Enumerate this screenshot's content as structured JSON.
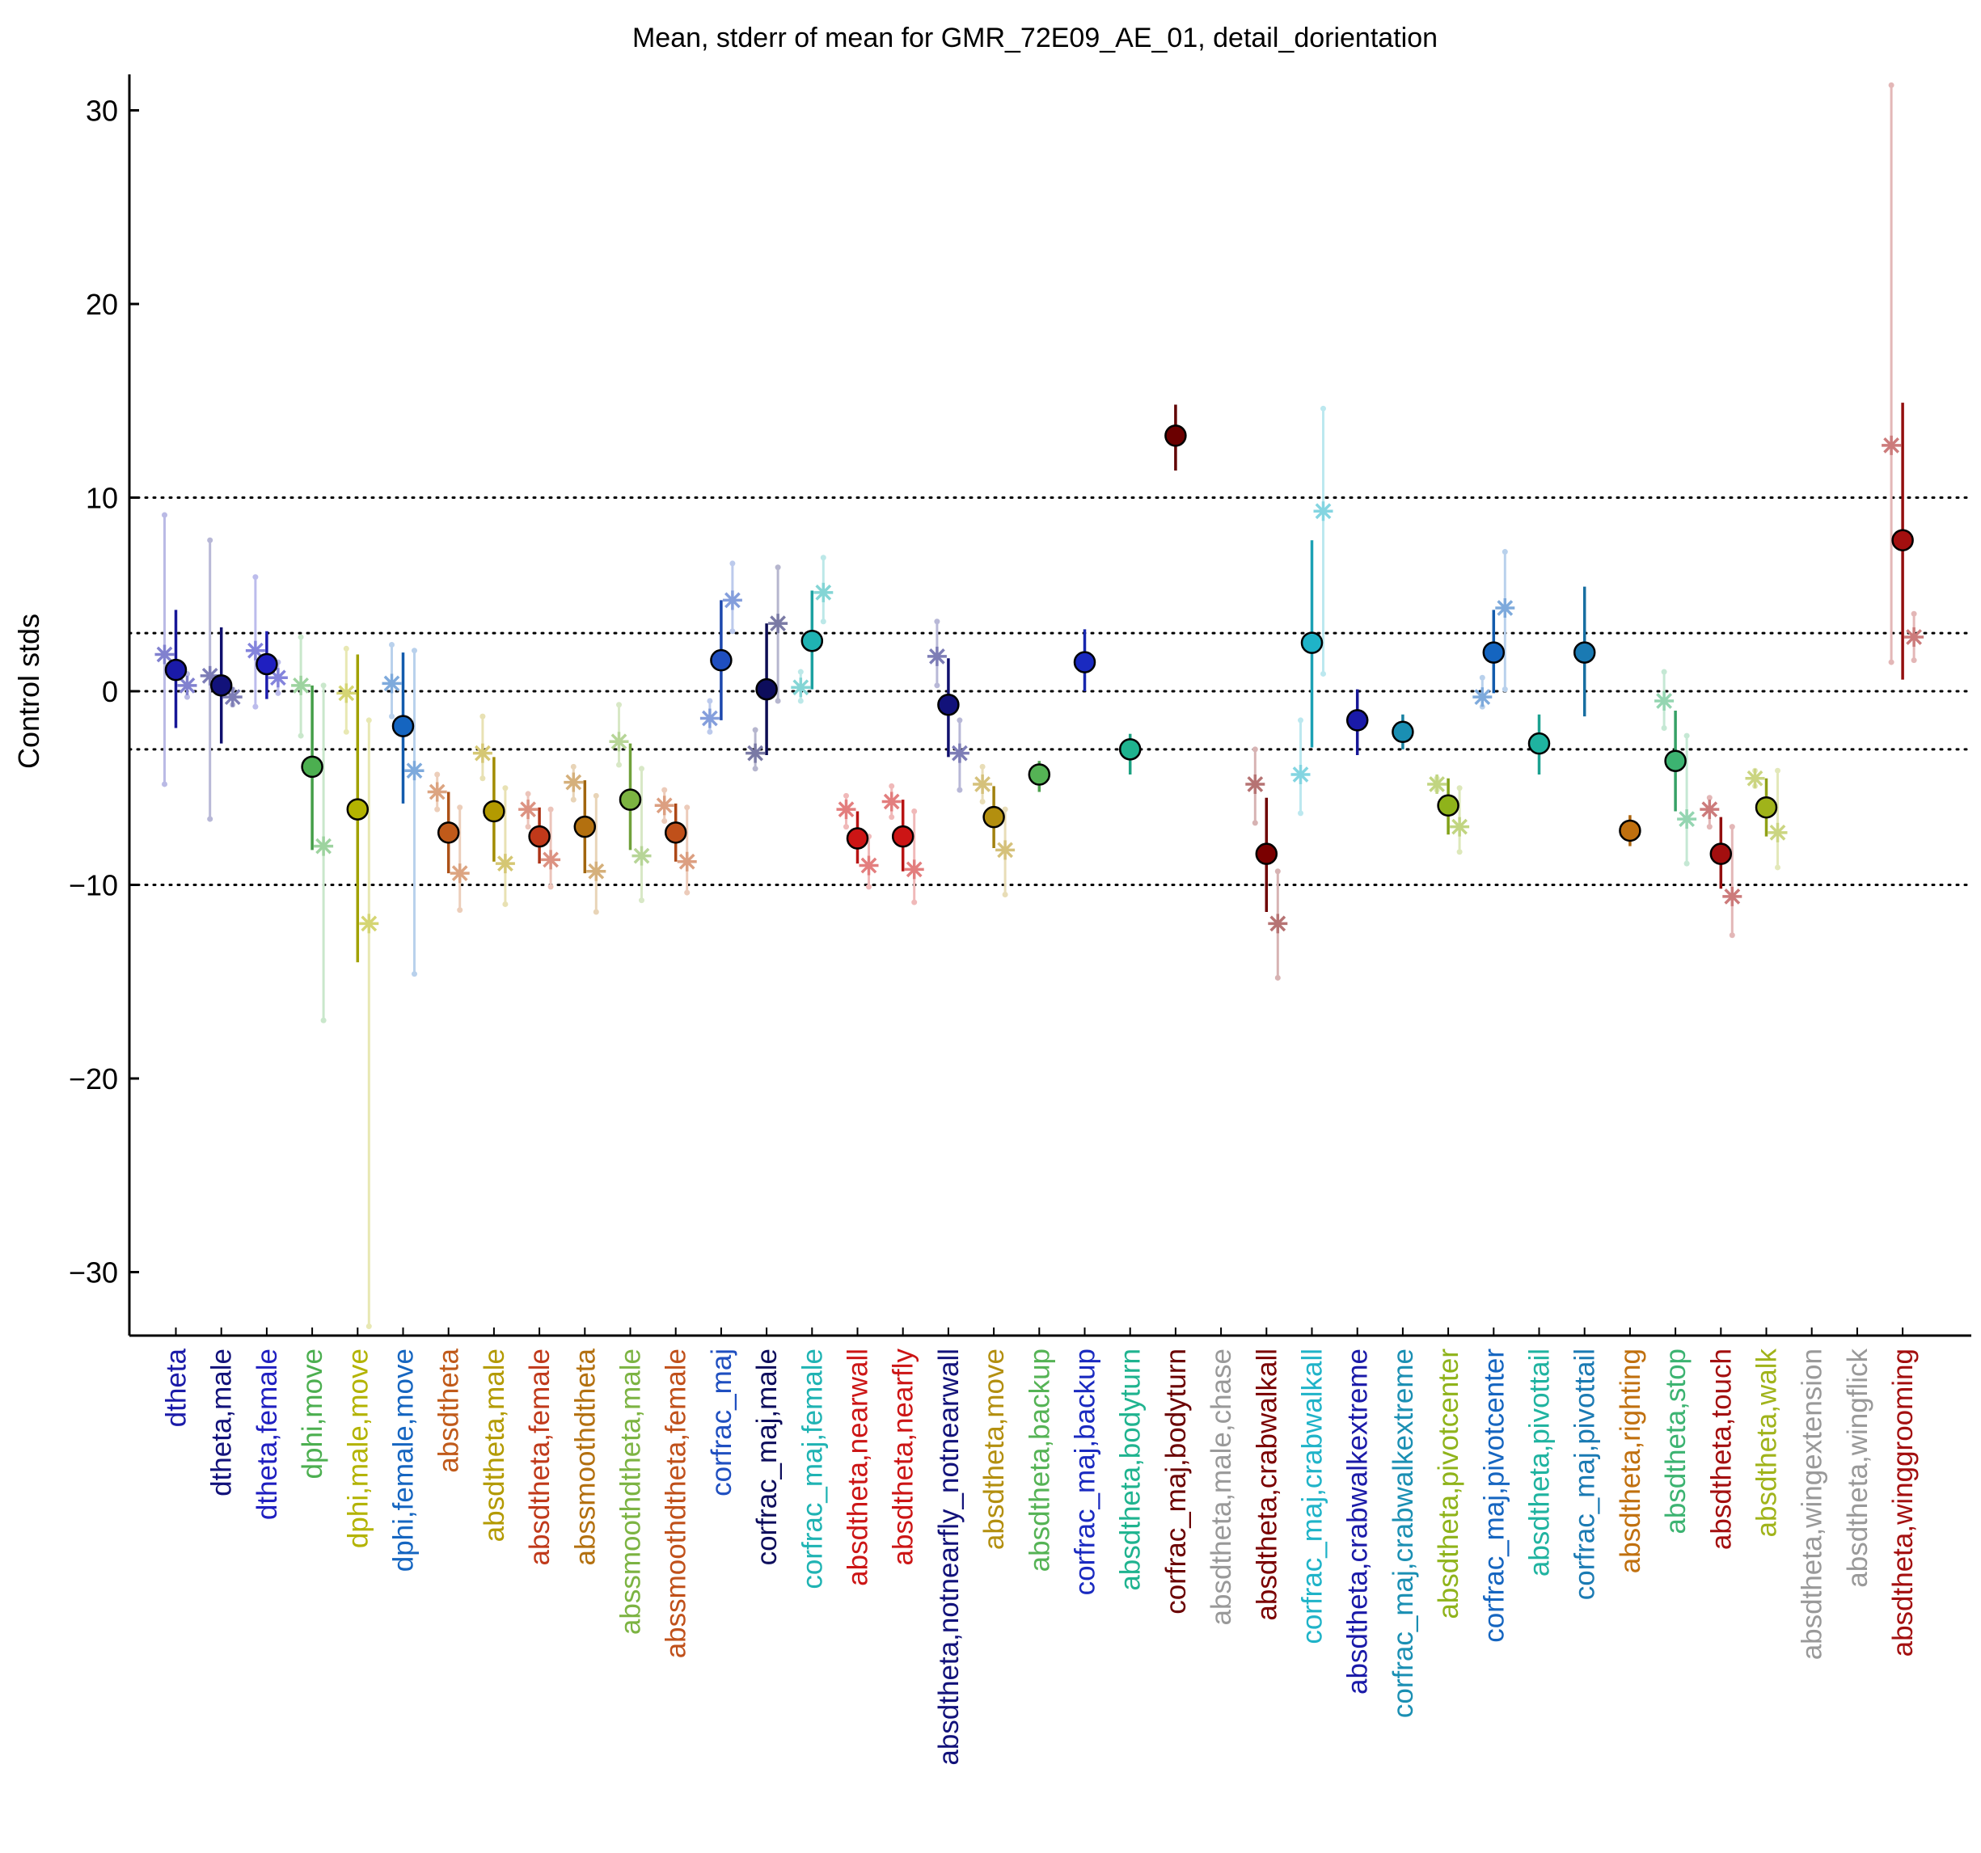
{
  "chart_data": {
    "type": "scatter",
    "title": "Mean, stderr of mean for GMR_72E09_AE_01, detail_dorientation",
    "xlabel": "",
    "ylabel": "Control stds",
    "ylim": [
      -33,
      32
    ],
    "yticks": [
      -30,
      -20,
      -10,
      0,
      10,
      20,
      30
    ],
    "ytick_labels": [
      "−30",
      "−20",
      "−10",
      "0",
      "10",
      "20",
      "30"
    ],
    "reference_lines": [
      -10,
      -3,
      0,
      3,
      10
    ],
    "grid": false,
    "legend": "none",
    "categories": [
      "dtheta",
      "dtheta,male",
      "dtheta,female",
      "dphi,move",
      "dphi,male,move",
      "dphi,female,move",
      "absdtheta",
      "absdtheta,male",
      "absdtheta,female",
      "abssmoothdtheta",
      "abssmoothdtheta,male",
      "abssmoothdtheta,female",
      "corfrac_maj",
      "corfrac_maj,male",
      "corfrac_maj,female",
      "absdtheta,nearwall",
      "absdtheta,nearfly",
      "absdtheta,notnearfly_notnearwall",
      "absdtheta,move",
      "absdtheta,backup",
      "corfrac_maj,backup",
      "absdtheta,bodyturn",
      "corfrac_maj,bodyturn",
      "absdtheta,male,chase",
      "absdtheta,crabwalkall",
      "corfrac_maj,crabwalkall",
      "absdtheta,crabwalkextreme",
      "corfrac_maj,crabwalkextreme",
      "absdtheta,pivotcenter",
      "corfrac_maj,pivotcenter",
      "absdtheta,pivottail",
      "corfrac_maj,pivottail",
      "absdtheta,righting",
      "absdtheta,stop",
      "absdtheta,touch",
      "absdtheta,walk",
      "absdtheta,wingextension",
      "absdtheta,wingflick",
      "absdtheta,winggrooming"
    ],
    "category_colors": [
      "#1a1aa8",
      "#12127a",
      "#1f1fc0",
      "#4caf50",
      "#b3b300",
      "#1565c0",
      "#c05a1a",
      "#b39a00",
      "#c0391a",
      "#b3700f",
      "#7cb342",
      "#c0501a",
      "#1f4fc0",
      "#0d0d5c",
      "#1fb3b3",
      "#cc1515",
      "#cc1515",
      "#12127a",
      "#b38f0f",
      "#55b355",
      "#1a2ac0",
      "#1fb38f",
      "#6b0000",
      "#999999",
      "#7a0000",
      "#1fb3c8",
      "#1a1aa8",
      "#1a8fb3",
      "#8fb31a",
      "#1565c0",
      "#1fb3a0",
      "#1a7ab3",
      "#c0700f",
      "#3cb371",
      "#a30f0f",
      "#a0b31a",
      "#999999",
      "#999999",
      "#a30f0f"
    ],
    "series": [
      {
        "marker": "circle",
        "values": [
          1.1,
          0.3,
          1.4,
          -3.9,
          -6.1,
          -1.8,
          -7.3,
          -6.2,
          -7.5,
          -7.0,
          -5.6,
          -7.3,
          1.6,
          0.1,
          2.6,
          -7.6,
          -7.5,
          -0.7,
          -6.5,
          -4.3,
          1.5,
          -3.0,
          13.2,
          null,
          -8.4,
          2.5,
          -1.5,
          -2.1,
          -5.9,
          2.0,
          -2.7,
          2.0,
          -7.2,
          -3.6,
          -8.4,
          -6.0,
          null,
          null,
          7.8
        ],
        "err_low": [
          -1.9,
          -2.7,
          -0.4,
          -8.2,
          -14.0,
          -5.8,
          -9.4,
          -8.8,
          -8.9,
          -9.4,
          -8.2,
          -8.8,
          -1.5,
          -3.3,
          0.1,
          -8.9,
          -9.3,
          -3.4,
          -8.1,
          -5.2,
          0.0,
          -4.3,
          11.4,
          null,
          -11.4,
          -2.9,
          -3.3,
          -3.0,
          -7.4,
          -0.1,
          -4.3,
          -1.3,
          -8.0,
          -6.2,
          -10.2,
          -7.5,
          null,
          null,
          0.6
        ],
        "err_high": [
          4.2,
          3.3,
          3.1,
          0.3,
          1.9,
          2.0,
          -5.2,
          -3.4,
          -6.0,
          -4.6,
          -2.7,
          -5.8,
          4.7,
          3.5,
          5.2,
          -6.2,
          -5.6,
          1.7,
          -4.9,
          -3.6,
          3.2,
          -2.2,
          14.8,
          null,
          -5.5,
          7.8,
          0.1,
          -1.2,
          -4.5,
          4.2,
          -1.2,
          5.4,
          -6.4,
          -1.0,
          -6.5,
          -4.5,
          null,
          null,
          14.9
        ]
      },
      {
        "marker": "asterisk",
        "offset": "left",
        "values": [
          1.9,
          0.8,
          2.1,
          0.3,
          -0.1,
          0.4,
          -5.2,
          -3.2,
          -6.1,
          -4.7,
          -2.6,
          -5.9,
          -1.4,
          -3.2,
          0.2,
          -6.1,
          -5.7,
          1.8,
          -4.8,
          null,
          null,
          null,
          null,
          null,
          -4.8,
          -4.3,
          null,
          null,
          -4.8,
          -0.3,
          null,
          null,
          null,
          -0.5,
          -6.1,
          -4.5,
          null,
          null,
          12.7
        ],
        "err_low": [
          -4.8,
          -6.6,
          -0.8,
          -2.3,
          -2.1,
          -1.3,
          -6.1,
          -4.5,
          -7.0,
          -5.6,
          -3.8,
          -6.7,
          -2.1,
          -4.0,
          -0.5,
          -7.0,
          -6.5,
          0.3,
          -5.7,
          null,
          null,
          null,
          null,
          null,
          -6.8,
          -6.3,
          null,
          null,
          -5.1,
          -0.8,
          null,
          null,
          null,
          -1.9,
          -7.0,
          -4.9,
          null,
          null,
          1.5
        ],
        "err_high": [
          9.1,
          7.8,
          5.9,
          2.8,
          2.2,
          2.4,
          -4.3,
          -1.3,
          -5.3,
          -3.9,
          -0.7,
          -5.1,
          -0.5,
          -2.0,
          1.0,
          -5.4,
          -4.9,
          3.6,
          -3.9,
          null,
          null,
          null,
          null,
          null,
          -3.0,
          -1.5,
          null,
          null,
          -4.5,
          0.7,
          null,
          null,
          null,
          1.0,
          -5.5,
          -4.1,
          null,
          null,
          31.3
        ]
      },
      {
        "marker": "asterisk",
        "offset": "right",
        "values": [
          0.3,
          -0.3,
          0.7,
          -8.0,
          -12.0,
          -4.1,
          -9.4,
          -8.9,
          -8.7,
          -9.3,
          -8.5,
          -8.8,
          4.7,
          3.5,
          5.1,
          -9.0,
          -9.2,
          -3.2,
          -8.2,
          null,
          null,
          null,
          null,
          null,
          -12.0,
          9.3,
          null,
          null,
          -7.0,
          4.3,
          null,
          null,
          null,
          -6.6,
          -10.6,
          -7.3,
          null,
          null,
          2.8
        ],
        "err_low": [
          -0.3,
          -0.7,
          -0.1,
          -17.0,
          -32.8,
          -14.6,
          -11.3,
          -11.0,
          -10.1,
          -11.4,
          -10.8,
          -10.4,
          3.1,
          -0.5,
          3.6,
          -10.1,
          -10.9,
          -5.1,
          -10.5,
          null,
          null,
          null,
          null,
          null,
          -14.8,
          0.9,
          null,
          null,
          -8.3,
          0.1,
          null,
          null,
          null,
          -8.9,
          -12.6,
          -9.1,
          null,
          null,
          1.6
        ],
        "err_high": [
          0.9,
          0.1,
          1.5,
          0.3,
          -1.5,
          2.1,
          -6.0,
          -5.0,
          -6.1,
          -5.4,
          -4.0,
          -6.0,
          6.6,
          6.4,
          6.9,
          -7.5,
          -6.2,
          -1.5,
          -6.1,
          null,
          null,
          null,
          null,
          null,
          -9.3,
          14.6,
          null,
          null,
          -5.0,
          7.2,
          null,
          null,
          null,
          -2.3,
          -7.0,
          -4.1,
          null,
          null,
          4.0
        ]
      }
    ]
  }
}
